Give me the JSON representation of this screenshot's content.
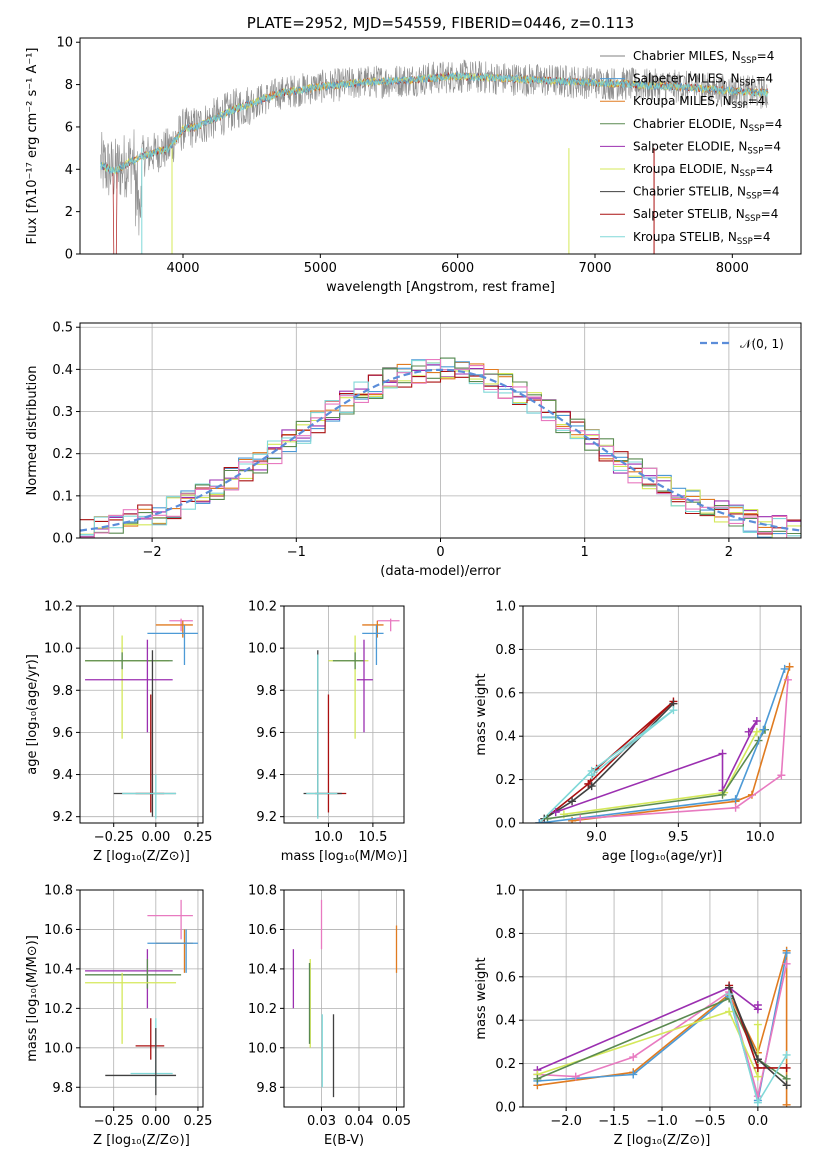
{
  "figure": {
    "colors": {
      "chabrier_miles": "#808080",
      "salpeter_miles": "#4d9ad6",
      "kroupa_miles": "#e07b20",
      "chabrier_elodie": "#5a8a50",
      "salpeter_elodie": "#9b2fb0",
      "kroupa_elodie": "#d4e85a",
      "chabrier_stelib": "#404040",
      "salpeter_stelib": "#aa1010",
      "kroupa_stelib": "#80d8d8",
      "gaussian": "#5b8dd9",
      "pink": "#e87ac0"
    }
  },
  "chart_data": [
    {
      "id": "spectrum",
      "type": "line",
      "title": "PLATE=2952, MJD=54559, FIBERID=0446, z=0.113",
      "xlabel": "wavelength [Angstrom, rest frame]",
      "ylabel": "Flux [fλ10⁻¹⁷ erg cm⁻² s⁻¹ A⁻¹]",
      "xlim": [
        3250,
        8500
      ],
      "ylim": [
        0,
        10.2
      ],
      "xticks": [
        "4000",
        "5000",
        "6000",
        "7000",
        "8000"
      ],
      "xtick_values": [
        4000,
        5000,
        6000,
        7000,
        8000
      ],
      "yticks": [
        "0",
        "2",
        "4",
        "6",
        "8",
        "10"
      ],
      "ytick_values": [
        0,
        2,
        4,
        6,
        8,
        10
      ],
      "grid": false,
      "legend_position": "right",
      "continuum": {
        "x": [
          3400,
          3500,
          3600,
          3700,
          3800,
          3900,
          4000,
          4100,
          4200,
          4300,
          4400,
          4500,
          4700,
          5000,
          5300,
          5600,
          6000,
          6300,
          6600,
          7000,
          7300,
          7600,
          8000,
          8260
        ],
        "y": [
          4.2,
          3.9,
          4.3,
          4.6,
          4.8,
          5.0,
          5.9,
          6.0,
          6.3,
          6.6,
          6.9,
          7.1,
          7.6,
          7.9,
          8.1,
          8.2,
          8.4,
          8.3,
          8.2,
          8.1,
          8.0,
          7.9,
          7.7,
          7.6
        ]
      },
      "legend": [
        {
          "label": "Chabrier MILES, N",
          "sub": "SSP",
          "suffix": "=4",
          "color_key": "chabrier_miles"
        },
        {
          "label": "Salpeter MILES, N",
          "sub": "SSP",
          "suffix": "=4",
          "color_key": "salpeter_miles"
        },
        {
          "label": "Kroupa MILES, N",
          "sub": "SSP",
          "suffix": "=4",
          "color_key": "kroupa_miles"
        },
        {
          "label": "Chabrier ELODIE, N",
          "sub": "SSP",
          "suffix": "=4",
          "color_key": "chabrier_elodie"
        },
        {
          "label": "Salpeter ELODIE, N",
          "sub": "SSP",
          "suffix": "=4",
          "color_key": "salpeter_elodie"
        },
        {
          "label": "Kroupa ELODIE, N",
          "sub": "SSP",
          "suffix": "=4",
          "color_key": "kroupa_elodie"
        },
        {
          "label": "Chabrier STELIB, N",
          "sub": "SSP",
          "suffix": "=4",
          "color_key": "chabrier_stelib"
        },
        {
          "label": "Salpeter STELIB, N",
          "sub": "SSP",
          "suffix": "=4",
          "color_key": "salpeter_stelib"
        },
        {
          "label": "Kroupa STELIB, N",
          "sub": "SSP",
          "suffix": "=4",
          "color_key": "kroupa_stelib"
        }
      ]
    },
    {
      "id": "residuals",
      "type": "histogram",
      "xlabel": "(data-model)/error",
      "ylabel": "Normed distribution",
      "xlim": [
        -2.5,
        2.5
      ],
      "ylim": [
        0,
        0.51
      ],
      "xticks": [
        "−2",
        "−1",
        "0",
        "1",
        "2"
      ],
      "xtick_values": [
        -2,
        -1,
        0,
        1,
        2
      ],
      "yticks": [
        "0.0",
        "0.1",
        "0.2",
        "0.3",
        "0.4",
        "0.5"
      ],
      "ytick_values": [
        0,
        0.1,
        0.2,
        0.3,
        0.4,
        0.5
      ],
      "grid": true,
      "legend_position": "upper right",
      "legend_label": "𝒩(0, 1)",
      "bin_width": 0.1
    },
    {
      "id": "age_vs_Z",
      "type": "errorbar",
      "xlabel": "Z [log₁₀(Z/Z⊙)]",
      "ylabel": "age  [log₁₀(age/yr)]",
      "xlim": [
        -0.45,
        0.28
      ],
      "ylim": [
        9.17,
        10.2
      ],
      "xticks": [
        "−0.25",
        "0.00",
        "0.25"
      ],
      "xtick_values": [
        -0.25,
        0,
        0.25
      ],
      "yticks": [
        "9.2",
        "9.4",
        "9.6",
        "9.8",
        "10.0",
        "10.2"
      ],
      "ytick_values": [
        9.2,
        9.4,
        9.6,
        9.8,
        10.0,
        10.2
      ],
      "grid": true,
      "points": [
        {
          "c": "pink",
          "x": 0.15,
          "y": 10.13,
          "x0": 0.08,
          "x1": 0.22,
          "y0": 10.08,
          "y1": 10.14
        },
        {
          "c": "kroupa_miles",
          "x": 0.16,
          "y": 10.11,
          "x0": 0.0,
          "x1": 0.22,
          "y0": 10.05,
          "y1": 10.13
        },
        {
          "c": "salpeter_miles",
          "x": 0.17,
          "y": 10.07,
          "x0": -0.05,
          "x1": 0.25,
          "y0": 9.92,
          "y1": 10.11
        },
        {
          "c": "kroupa_elodie",
          "x": -0.2,
          "y": 9.94,
          "x0": -0.42,
          "x1": 0.08,
          "y0": 9.57,
          "y1": 10.06
        },
        {
          "c": "chabrier_elodie",
          "x": -0.2,
          "y": 9.94,
          "x0": -0.42,
          "x1": 0.1,
          "y0": 9.9,
          "y1": 9.98
        },
        {
          "c": "salpeter_elodie",
          "x": -0.05,
          "y": 9.85,
          "x0": -0.42,
          "x1": 0.1,
          "y0": 9.6,
          "y1": 10.04
        },
        {
          "c": "salpeter_stelib",
          "x": -0.03,
          "y": 9.31,
          "x0": -0.12,
          "x1": 0.05,
          "y0": 9.22,
          "y1": 9.78
        },
        {
          "c": "chabrier_stelib",
          "x": -0.02,
          "y": 9.31,
          "x0": -0.25,
          "x1": 0.12,
          "y0": 9.2,
          "y1": 9.99
        },
        {
          "c": "kroupa_stelib",
          "x": 0.0,
          "y": 9.31,
          "x0": -0.2,
          "x1": 0.12,
          "y0": 9.19,
          "y1": 9.4
        }
      ]
    },
    {
      "id": "age_vs_mass",
      "type": "errorbar",
      "xlabel": "mass [log₁₀(M/M⊙)]",
      "xlim": [
        9.5,
        10.85
      ],
      "ylim": [
        9.17,
        10.2
      ],
      "xticks": [
        "10.0",
        "10.5"
      ],
      "xtick_values": [
        10.0,
        10.5
      ],
      "yticks": [
        "9.2",
        "9.4",
        "9.6",
        "9.8",
        "10.0",
        "10.2"
      ],
      "ytick_values": [
        9.2,
        9.4,
        9.6,
        9.8,
        10.0,
        10.2
      ],
      "grid": true,
      "points": [
        {
          "c": "pink",
          "x": 10.7,
          "y": 10.13,
          "x0": 10.55,
          "x1": 10.8,
          "y0": 10.08,
          "y1": 10.14
        },
        {
          "c": "kroupa_miles",
          "x": 10.55,
          "y": 10.11,
          "x0": 10.38,
          "x1": 10.62,
          "y0": 10.05,
          "y1": 10.13
        },
        {
          "c": "salpeter_miles",
          "x": 10.54,
          "y": 10.07,
          "x0": 10.38,
          "x1": 10.62,
          "y0": 9.92,
          "y1": 10.11
        },
        {
          "c": "kroupa_elodie",
          "x": 10.3,
          "y": 9.94,
          "x0": 10.0,
          "x1": 10.45,
          "y0": 9.57,
          "y1": 10.06
        },
        {
          "c": "chabrier_elodie",
          "x": 10.3,
          "y": 9.94,
          "x0": 10.05,
          "x1": 10.4,
          "y0": 9.9,
          "y1": 9.98
        },
        {
          "c": "salpeter_elodie",
          "x": 10.4,
          "y": 9.85,
          "x0": 10.32,
          "x1": 10.5,
          "y0": 9.6,
          "y1": 10.04
        },
        {
          "c": "salpeter_stelib",
          "x": 10.0,
          "y": 9.31,
          "x0": 9.85,
          "x1": 10.2,
          "y0": 9.22,
          "y1": 9.78
        },
        {
          "c": "chabrier_stelib",
          "x": 9.88,
          "y": 9.31,
          "x0": 9.72,
          "x1": 10.15,
          "y0": 9.2,
          "y1": 9.99
        },
        {
          "c": "kroupa_stelib",
          "x": 9.88,
          "y": 9.31,
          "x0": 9.75,
          "x1": 10.1,
          "y0": 9.19,
          "y1": 9.97
        }
      ]
    },
    {
      "id": "weight_vs_age",
      "type": "line",
      "xlabel": "age  [log₁₀(age/yr)]",
      "ylabel": "mass weight",
      "xlim": [
        8.55,
        10.25
      ],
      "ylim": [
        0,
        1.0
      ],
      "xticks": [
        "9.0",
        "9.5",
        "10.0"
      ],
      "xtick_values": [
        9.0,
        9.5,
        10.0
      ],
      "yticks": [
        "0.0",
        "0.2",
        "0.4",
        "0.6",
        "0.8",
        "1.0"
      ],
      "ytick_values": [
        0,
        0.2,
        0.4,
        0.6,
        0.8,
        1.0
      ],
      "grid": true,
      "series": [
        {
          "c": "salpeter_stelib",
          "x": [
            8.65,
            8.95,
            9.0,
            9.47,
            8.95
          ],
          "y": [
            0.0,
            0.18,
            0.25,
            0.56,
            0.18
          ]
        },
        {
          "c": "chabrier_stelib",
          "x": [
            8.68,
            8.85,
            8.97,
            9.47
          ],
          "y": [
            0.02,
            0.1,
            0.17,
            0.55
          ]
        },
        {
          "c": "kroupa_stelib",
          "x": [
            8.65,
            8.97,
            9.47,
            8.97
          ],
          "y": [
            0.0,
            0.24,
            0.52,
            0.22
          ]
        },
        {
          "c": "salpeter_elodie",
          "x": [
            8.75,
            9.77,
            9.77,
            9.98,
            9.93
          ],
          "y": [
            0.05,
            0.32,
            0.15,
            0.47,
            0.42
          ]
        },
        {
          "c": "kroupa_elodie",
          "x": [
            8.8,
            9.78,
            9.98,
            10.03
          ],
          "y": [
            0.04,
            0.14,
            0.42,
            0.43
          ]
        },
        {
          "c": "chabrier_elodie",
          "x": [
            8.7,
            9.77,
            9.99,
            10.03
          ],
          "y": [
            0.02,
            0.13,
            0.38,
            0.43
          ]
        },
        {
          "c": "kroupa_miles",
          "x": [
            8.85,
            9.85,
            9.95,
            10.18
          ],
          "y": [
            0.01,
            0.1,
            0.13,
            0.72
          ]
        },
        {
          "c": "salpeter_miles",
          "x": [
            8.65,
            9.85,
            10.02,
            10.15
          ],
          "y": [
            0.0,
            0.11,
            0.43,
            0.71
          ]
        },
        {
          "c": "pink",
          "x": [
            8.9,
            9.85,
            10.13,
            10.17
          ],
          "y": [
            0.02,
            0.07,
            0.22,
            0.66
          ]
        }
      ]
    },
    {
      "id": "mass_vs_Z",
      "type": "errorbar",
      "xlabel": "Z [log₁₀(Z/Z⊙)]",
      "ylabel": "mass [log₁₀(M/M⊙)]",
      "xlim": [
        -0.45,
        0.28
      ],
      "ylim": [
        9.7,
        10.8
      ],
      "xticks": [
        "−0.25",
        "0.00",
        "0.25"
      ],
      "xtick_values": [
        -0.25,
        0,
        0.25
      ],
      "yticks": [
        "9.8",
        "10.0",
        "10.2",
        "10.4",
        "10.6",
        "10.8"
      ],
      "ytick_values": [
        9.8,
        10.0,
        10.2,
        10.4,
        10.6,
        10.8
      ],
      "grid": true,
      "points": [
        {
          "c": "pink",
          "x": 0.15,
          "y": 10.67,
          "x0": -0.05,
          "x1": 0.22,
          "y0": 10.55,
          "y1": 10.75
        },
        {
          "c": "kroupa_miles",
          "x": 0.17,
          "y": 10.53,
          "x0": 0.0,
          "x1": 0.22,
          "y0": 10.38,
          "y1": 10.6
        },
        {
          "c": "salpeter_miles",
          "x": 0.18,
          "y": 10.53,
          "x0": -0.05,
          "x1": 0.25,
          "y0": 10.38,
          "y1": 10.6
        },
        {
          "c": "salpeter_elodie",
          "x": -0.05,
          "y": 10.39,
          "x0": -0.42,
          "x1": 0.1,
          "y0": 10.2,
          "y1": 10.5
        },
        {
          "c": "chabrier_elodie",
          "x": -0.05,
          "y": 10.37,
          "x0": -0.42,
          "x1": 0.15,
          "y0": 10.3,
          "y1": 10.45
        },
        {
          "c": "kroupa_elodie",
          "x": -0.2,
          "y": 10.33,
          "x0": -0.42,
          "x1": 0.12,
          "y0": 10.02,
          "y1": 10.38
        },
        {
          "c": "salpeter_stelib",
          "x": -0.03,
          "y": 10.01,
          "x0": -0.12,
          "x1": 0.05,
          "y0": 9.94,
          "y1": 10.15
        },
        {
          "c": "kroupa_stelib",
          "x": 0.0,
          "y": 9.87,
          "x0": -0.15,
          "x1": 0.1,
          "y0": 9.8,
          "y1": 10.15
        },
        {
          "c": "chabrier_stelib",
          "x": 0.0,
          "y": 9.86,
          "x0": -0.3,
          "x1": 0.12,
          "y0": 9.76,
          "y1": 10.1
        }
      ]
    },
    {
      "id": "mass_vs_ebv",
      "type": "errorbar",
      "xlabel": "E(B-V)",
      "xlim": [
        0.02,
        0.052
      ],
      "ylim": [
        9.7,
        10.8
      ],
      "xticks": [
        "0.03",
        "0.04",
        "0.05"
      ],
      "xtick_values": [
        0.03,
        0.04,
        0.05
      ],
      "yticks": [
        "9.8",
        "10.0",
        "10.2",
        "10.4",
        "10.6",
        "10.8"
      ],
      "ytick_values": [
        9.8,
        10.0,
        10.2,
        10.4,
        10.6,
        10.8
      ],
      "grid": true,
      "points": [
        {
          "c": "salpeter_elodie",
          "x": 0.0225,
          "y": 10.35,
          "x0": 0.0225,
          "x1": 0.0225,
          "y0": 10.2,
          "y1": 10.5
        },
        {
          "c": "kroupa_elodie",
          "x": 0.027,
          "y": 10.2,
          "x0": 0.027,
          "x1": 0.027,
          "y0": 10.0,
          "y1": 10.45
        },
        {
          "c": "chabrier_elodie",
          "x": 0.0268,
          "y": 10.3,
          "x0": 0.0268,
          "x1": 0.0268,
          "y0": 10.02,
          "y1": 10.43
        },
        {
          "c": "pink",
          "x": 0.03,
          "y": 10.62,
          "x0": 0.03,
          "x1": 0.03,
          "y0": 10.5,
          "y1": 10.75
        },
        {
          "c": "kroupa_stelib",
          "x": 0.0302,
          "y": 9.97,
          "x0": 0.0302,
          "x1": 0.0302,
          "y0": 9.8,
          "y1": 10.17
        },
        {
          "c": "chabrier_stelib",
          "x": 0.0332,
          "y": 9.97,
          "x0": 0.0332,
          "x1": 0.0332,
          "y0": 9.75,
          "y1": 10.17
        },
        {
          "c": "kroupa_miles",
          "x": 0.05,
          "y": 10.5,
          "x0": 0.05,
          "x1": 0.05,
          "y0": 10.38,
          "y1": 10.62
        }
      ]
    },
    {
      "id": "weight_vs_Z",
      "type": "line",
      "xlabel": "Z [log₁₀(Z/Z⊙)]",
      "ylabel": "mass weight",
      "xlim": [
        -2.45,
        0.45
      ],
      "ylim": [
        0,
        1.0
      ],
      "xticks": [
        "−2.0",
        "−1.5",
        "−1.0",
        "−0.5",
        "0.0"
      ],
      "xtick_values": [
        -2.0,
        -1.5,
        -1.0,
        -0.5,
        0.0
      ],
      "yticks": [
        "0.0",
        "0.2",
        "0.4",
        "0.6",
        "0.8",
        "1.0"
      ],
      "ytick_values": [
        0,
        0.2,
        0.4,
        0.6,
        0.8,
        1.0
      ],
      "grid": true,
      "series": [
        {
          "c": "kroupa_miles",
          "x": [
            -2.3,
            -1.3,
            -0.3,
            0.0,
            0.3,
            0.3
          ],
          "y": [
            0.1,
            0.16,
            0.52,
            0.25,
            0.72,
            0.01
          ]
        },
        {
          "c": "salpeter_miles",
          "x": [
            -2.3,
            -1.3,
            -0.3,
            0.0,
            0.3
          ],
          "y": [
            0.12,
            0.15,
            0.51,
            0.03,
            0.71
          ]
        },
        {
          "c": "pink",
          "x": [
            -2.3,
            -1.9,
            -1.3,
            -0.3,
            0.0,
            0.3
          ],
          "y": [
            0.15,
            0.14,
            0.23,
            0.53,
            0.05,
            0.66
          ]
        },
        {
          "c": "salpeter_elodie",
          "x": [
            -2.3,
            -0.3,
            0.0,
            0.0
          ],
          "y": [
            0.17,
            0.55,
            0.45,
            0.47
          ]
        },
        {
          "c": "kroupa_elodie",
          "x": [
            -2.3,
            -0.3,
            0.0,
            0.0
          ],
          "y": [
            0.15,
            0.44,
            0.14,
            0.38
          ]
        },
        {
          "c": "chabrier_elodie",
          "x": [
            -2.3,
            -0.3,
            0.0,
            0.3
          ],
          "y": [
            0.13,
            0.5,
            0.22,
            0.13
          ]
        },
        {
          "c": "salpeter_stelib",
          "x": [
            -0.3,
            0.0,
            0.3
          ],
          "y": [
            0.56,
            0.18,
            0.18
          ]
        },
        {
          "c": "chabrier_stelib",
          "x": [
            -0.3,
            0.0,
            0.3
          ],
          "y": [
            0.55,
            0.22,
            0.1
          ]
        },
        {
          "c": "kroupa_stelib",
          "x": [
            -0.3,
            0.0,
            0.3
          ],
          "y": [
            0.52,
            0.02,
            0.24
          ]
        }
      ]
    }
  ]
}
